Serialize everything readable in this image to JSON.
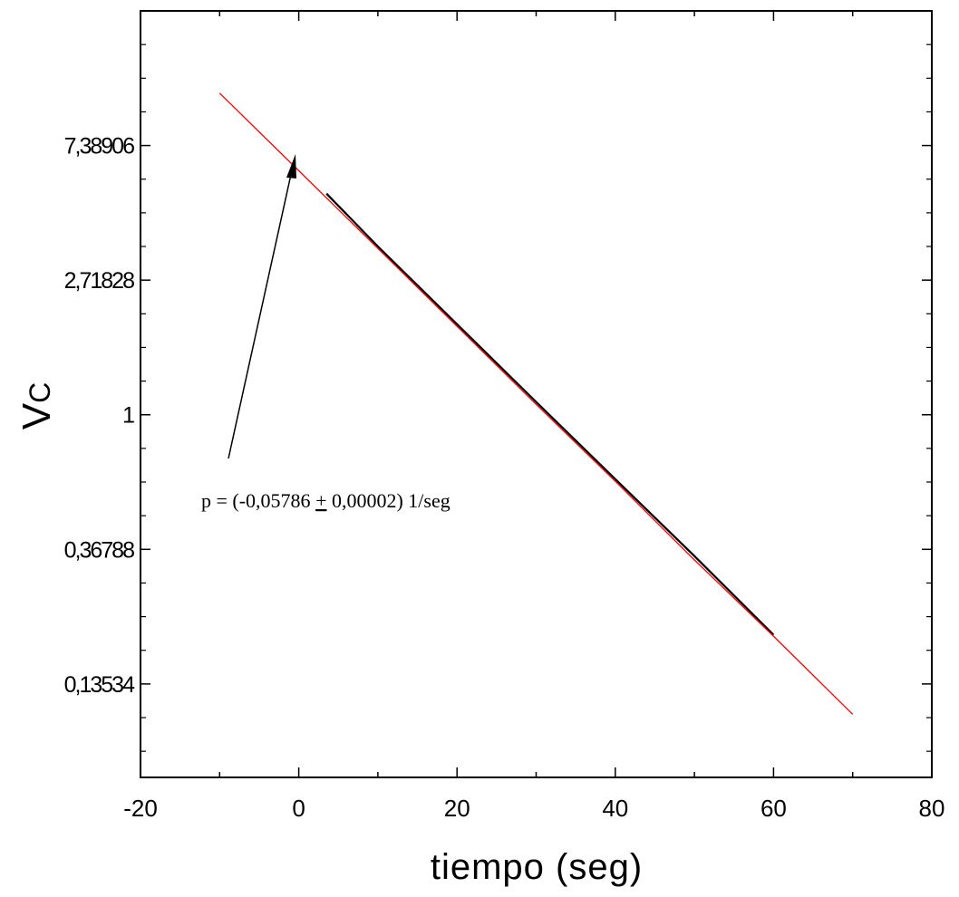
{
  "chart_data": {
    "type": "line",
    "xlabel": "tiempo (seg)",
    "ylabel": "V",
    "ylabel_subscript": "C",
    "xlim": [
      -20,
      80
    ],
    "ylim": [
      0.0676,
      20.09
    ],
    "y_scale": "ln",
    "x_ticks": [
      -20,
      0,
      20,
      40,
      60,
      80
    ],
    "x_tick_labels": [
      "-20",
      "0",
      "20",
      "40",
      "60",
      "80"
    ],
    "y_ticks": [
      0.13534,
      0.36788,
      1,
      2.71828,
      7.38906
    ],
    "y_tick_labels": [
      "0,13534",
      "0,36788",
      "1",
      "2,71828",
      "7,38906"
    ],
    "grid": false,
    "series": [
      {
        "kind": "data",
        "color": "#000000",
        "x": [
          3.5,
          10,
          20,
          30,
          40,
          50,
          60
        ],
        "y": [
          5.17,
          3.49,
          1.96,
          1.1,
          0.62,
          0.35,
          0.195
        ]
      },
      {
        "kind": "fit",
        "color": "#ff0000",
        "x": [
          -10,
          0,
          10,
          20,
          30,
          40,
          50,
          60,
          70
        ],
        "y": [
          10.9,
          6.13,
          3.44,
          1.93,
          1.08,
          0.61,
          0.34,
          0.193,
          0.108
        ]
      }
    ],
    "annotations": [
      {
        "text_before": "p = (-0,05786 ",
        "pm": "+",
        "text_after": " 0,00002) 1/seg",
        "arrow": true
      }
    ]
  }
}
